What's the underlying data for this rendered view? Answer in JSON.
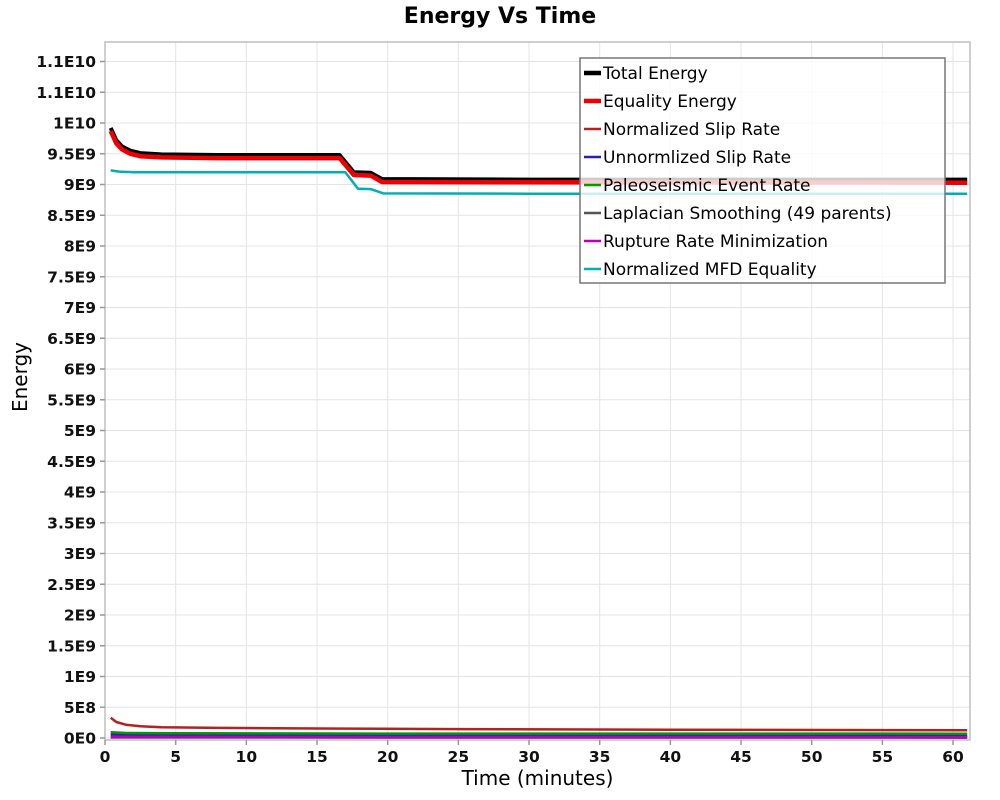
{
  "page": {
    "title": "Energy Vs Time",
    "y_axis_title": "Energy",
    "x_axis_title": "Time (minutes)"
  },
  "chart_data": {
    "type": "line",
    "title": "Energy Vs Time",
    "xlabel": "Time (minutes)",
    "ylabel": "Energy",
    "xlim": [
      0,
      61.2
    ],
    "ylim": [
      0,
      11300000000
    ],
    "grid": true,
    "legend_position": "top-right-inside",
    "x_ticks": [
      0,
      5,
      10,
      15,
      20,
      25,
      30,
      35,
      40,
      45,
      50,
      55,
      60
    ],
    "y_ticks": {
      "values": [
        0,
        500000000.0,
        1000000000.0,
        1500000000.0,
        2000000000.0,
        2500000000.0,
        3000000000.0,
        3500000000.0,
        4000000000.0,
        4500000000.0,
        5000000000.0,
        5500000000.0,
        6000000000.0,
        6500000000.0,
        7000000000.0,
        7500000000.0,
        8000000000.0,
        8500000000.0,
        9000000000.0,
        9500000000.0,
        10000000000.0,
        10500000000.0,
        11000000000.0
      ],
      "labels": [
        "0E0",
        "5E8",
        "1E9",
        "1.5E9",
        "2E9",
        "2.5E9",
        "3E9",
        "3.5E9",
        "4E9",
        "4.5E9",
        "5E9",
        "5.5E9",
        "6E9",
        "6.5E9",
        "7E9",
        "7.5E9",
        "8E9",
        "8.5E9",
        "9E9",
        "9.5E9",
        "1E10",
        "1.1E10",
        "1.1E10"
      ]
    },
    "series": [
      {
        "name": "Total Energy",
        "color": "#000000",
        "width": 4,
        "points": [
          [
            0.4,
            9920000000.0
          ],
          [
            0.8,
            9720000000.0
          ],
          [
            1.2,
            9620000000.0
          ],
          [
            1.8,
            9550000000.0
          ],
          [
            2.5,
            9510000000.0
          ],
          [
            4,
            9490000000.0
          ],
          [
            8,
            9480000000.0
          ],
          [
            16.6,
            9480000000.0
          ],
          [
            17.6,
            9200000000.0
          ],
          [
            18.8,
            9190000000.0
          ],
          [
            19.6,
            9090000000.0
          ],
          [
            30,
            9080000000.0
          ],
          [
            61,
            9080000000.0
          ]
        ]
      },
      {
        "name": "Equality Energy",
        "color": "#ee0000",
        "width": 4.5,
        "points": [
          [
            0.4,
            9870000000.0
          ],
          [
            0.8,
            9670000000.0
          ],
          [
            1.2,
            9570000000.0
          ],
          [
            1.8,
            9500000000.0
          ],
          [
            2.5,
            9460000000.0
          ],
          [
            4,
            9440000000.0
          ],
          [
            8,
            9430000000.0
          ],
          [
            16.6,
            9430000000.0
          ],
          [
            17.6,
            9155000000.0
          ],
          [
            18.8,
            9145000000.0
          ],
          [
            19.6,
            9040000000.0
          ],
          [
            30,
            9035000000.0
          ],
          [
            61,
            9030000000.0
          ]
        ]
      },
      {
        "name": "Normalized Slip Rate",
        "color": "#b22222",
        "width": 2.5,
        "points": [
          [
            0.4,
            330000000.0
          ],
          [
            0.8,
            260000000.0
          ],
          [
            1.5,
            215000000.0
          ],
          [
            2.5,
            190000000.0
          ],
          [
            4,
            175000000.0
          ],
          [
            8,
            165000000.0
          ],
          [
            15,
            155000000.0
          ],
          [
            25,
            145000000.0
          ],
          [
            40,
            135000000.0
          ],
          [
            61,
            125000000.0
          ]
        ]
      },
      {
        "name": "Unnormlized Slip Rate",
        "color": "#2222bb",
        "width": 2.5,
        "points": [
          [
            0.4,
            60000000.0
          ],
          [
            1.5,
            45000000.0
          ],
          [
            5,
            42000000.0
          ],
          [
            61,
            38000000.0
          ]
        ]
      },
      {
        "name": "Paleoseismic Event Rate",
        "color": "#009900",
        "width": 2.5,
        "points": [
          [
            0.4,
            95000000.0
          ],
          [
            1.5,
            82000000.0
          ],
          [
            5,
            76000000.0
          ],
          [
            20,
            72000000.0
          ],
          [
            61,
            70000000.0
          ]
        ]
      },
      {
        "name": "Laplacian Smoothing (49 parents)",
        "color": "#555555",
        "width": 2.5,
        "points": [
          [
            0.4,
            8000000.0
          ],
          [
            61,
            5000000.0
          ]
        ]
      },
      {
        "name": "Rupture Rate Minimization",
        "color": "#bb00bb",
        "width": 2.5,
        "points": [
          [
            0.4,
            22000000.0
          ],
          [
            2,
            18000000.0
          ],
          [
            61,
            15000000.0
          ]
        ]
      },
      {
        "name": "Normalized MFD Equality",
        "color": "#00afaf",
        "width": 2.5,
        "points": [
          [
            0.4,
            9230000000.0
          ],
          [
            1.0,
            9210000000.0
          ],
          [
            2,
            9200000000.0
          ],
          [
            17.0,
            9200000000.0
          ],
          [
            17.9,
            8930000000.0
          ],
          [
            18.8,
            8925000000.0
          ],
          [
            19.7,
            8855000000.0
          ],
          [
            30,
            8850000000.0
          ],
          [
            61,
            8850000000.0
          ]
        ]
      }
    ],
    "colors": {
      "grid": "#e4e4e4",
      "plot_border": "#bfbfbf",
      "tick": "#999999",
      "legend_border": "#777777",
      "legend_fill_rgba": "rgba(255,255,255,0.8)"
    }
  }
}
